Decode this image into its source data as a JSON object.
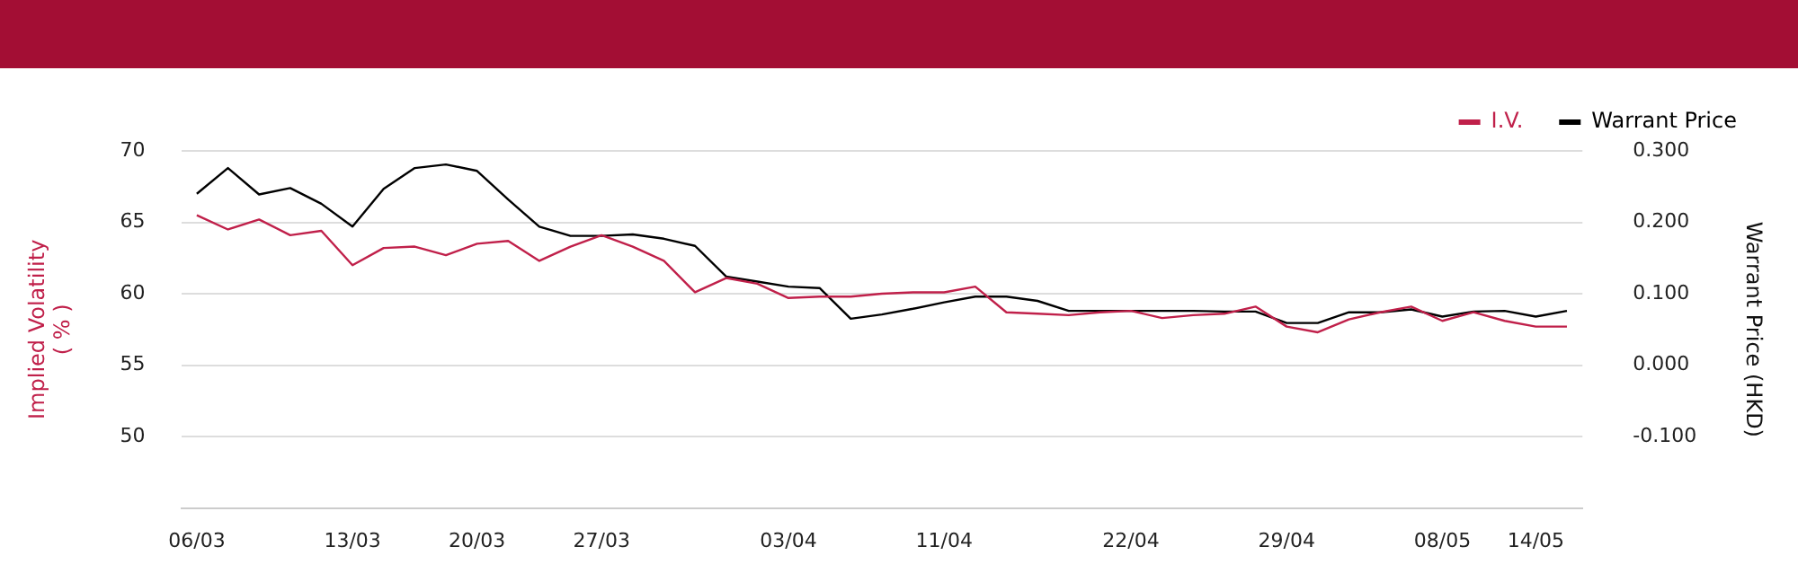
{
  "chart_data": {
    "type": "line",
    "categories": [
      "06/03",
      null,
      null,
      null,
      null,
      "13/03",
      null,
      null,
      null,
      "20/03",
      null,
      null,
      null,
      "27/03",
      null,
      null,
      null,
      null,
      null,
      "03/04",
      null,
      null,
      null,
      null,
      "11/04",
      null,
      null,
      null,
      null,
      null,
      "22/04",
      null,
      null,
      null,
      null,
      "29/04",
      null,
      null,
      null,
      null,
      "08/05",
      null,
      null,
      "14/05",
      null
    ],
    "series": [
      {
        "name": "I.V.",
        "color": "#c0204a",
        "values": [
          65.5,
          64.5,
          65.2,
          64.1,
          64.4,
          62.0,
          63.2,
          63.3,
          62.7,
          63.5,
          63.7,
          62.3,
          63.3,
          64.1,
          63.3,
          62.3,
          60.1,
          61.1,
          60.7,
          59.7,
          59.8,
          59.8,
          60.0,
          60.1,
          60.1,
          60.5,
          58.7,
          58.6,
          58.5,
          58.7,
          58.8,
          58.3,
          58.5,
          58.6,
          59.1,
          57.7,
          57.3,
          58.2,
          58.7,
          59.1,
          58.1,
          58.7,
          58.1,
          57.7,
          57.7
        ]
      },
      {
        "name": "Warrant Price",
        "color": "#000000",
        "axis": "y2",
        "values": [
          0.24,
          0.276,
          0.239,
          0.248,
          0.226,
          0.194,
          0.247,
          0.276,
          0.281,
          0.272,
          0.232,
          0.194,
          0.181,
          0.181,
          0.183,
          0.177,
          0.167,
          0.124,
          0.117,
          0.11,
          0.108,
          0.065,
          0.071,
          0.079,
          0.088,
          0.096,
          0.096,
          0.09,
          0.076,
          0.076,
          0.076,
          0.076,
          0.076,
          0.075,
          0.075,
          0.059,
          0.059,
          0.074,
          0.074,
          0.078,
          0.068,
          0.075,
          0.076,
          0.068,
          0.076
        ]
      }
    ],
    "ylabel": "Implied Volatility\n( % )",
    "y2label": "Warrant Price (HKD)",
    "ylim": [
      45,
      70
    ],
    "yticks": [
      50,
      55,
      60,
      65,
      70
    ],
    "y2lim": [
      -0.2,
      0.3
    ],
    "y2ticks": [
      {
        "value": -0.1,
        "label": "-0.100"
      },
      {
        "value": 0,
        "label": "0.000"
      },
      {
        "value": 0.1,
        "label": "0.100"
      },
      {
        "value": 0.2,
        "label": "0.200"
      },
      {
        "value": 0.3,
        "label": "0.300"
      }
    ],
    "grid": "y",
    "legend": "top right",
    "marker": "none",
    "line_style": "solid"
  }
}
